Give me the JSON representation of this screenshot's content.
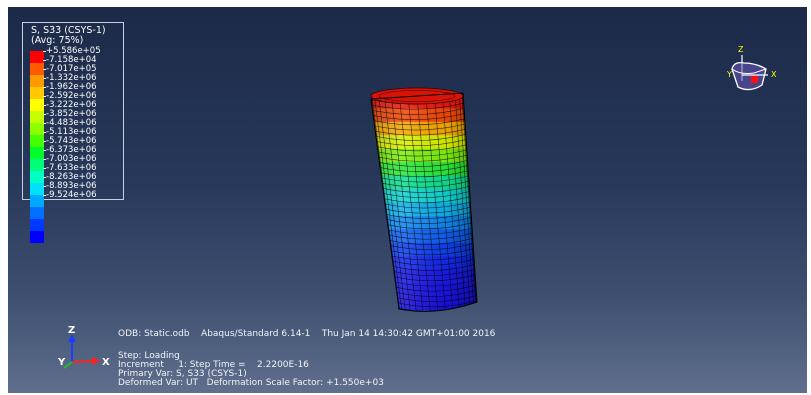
{
  "legend": {
    "title_line1": "S, S33 (CSYS-1)",
    "title_line2": "(Avg: 75%)",
    "values": [
      "+5.586e+05",
      "-7.158e+04",
      "-7.017e+05",
      "-1.332e+06",
      "-1.962e+06",
      "-2.592e+06",
      "-3.222e+06",
      "-3.852e+06",
      "-4.483e+06",
      "-5.113e+06",
      "-5.743e+06",
      "-6.373e+06",
      "-7.003e+06",
      "-7.633e+06",
      "-8.263e+06",
      "-8.893e+06",
      "-9.524e+06"
    ],
    "colors": [
      "#ff0000",
      "#ff5a00",
      "#ff9900",
      "#ffc800",
      "#ffff00",
      "#c8ff00",
      "#8cff00",
      "#46ff00",
      "#00ff2a",
      "#00ff78",
      "#00ffc4",
      "#00e0ff",
      "#00a8ff",
      "#0070ff",
      "#0038ff",
      "#0000ff"
    ]
  },
  "info": {
    "line1": "ODB: Static.odb    Abaqus/Standard 6.14-1    Thu Jan 14 14:30:42 GMT+01:00 2016",
    "line2": "Step: Loading",
    "line3": "Increment     1: Step Time =    2.2200E-16",
    "line4": "Primary Var: S, S33 (CSYS-1)",
    "line5": "Deformed Var: UT   Deformation Scale Factor: +1.550e+03"
  },
  "triad": {
    "x": "X",
    "y": "Y",
    "z": "Z"
  },
  "model": {
    "name": "Deformed cylinder contour",
    "band_colors": [
      "#e81a10",
      "#f24a08",
      "#f7a800",
      "#d8f000",
      "#7ef010",
      "#2ee83a",
      "#10e090",
      "#10d4d0",
      "#10b0e8",
      "#1088f0",
      "#1060f0",
      "#1040ee",
      "#1428ec",
      "#1a1ae8",
      "#1a14e4",
      "#1a10e0"
    ]
  }
}
